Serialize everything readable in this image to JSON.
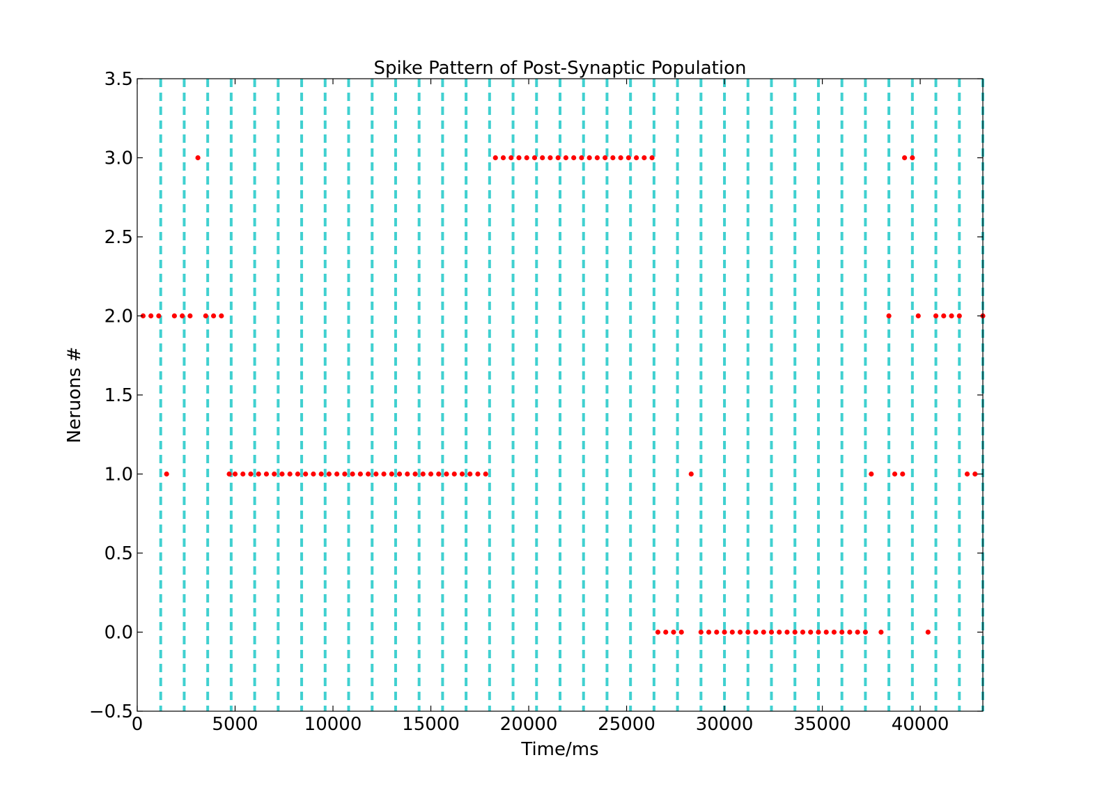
{
  "chart_data": {
    "type": "scatter",
    "title": "Spike Pattern of Post-Synaptic Population",
    "xlabel": "Time/ms",
    "ylabel": "Neruons #",
    "xlim": [
      0,
      43200
    ],
    "ylim": [
      -0.5,
      3.5
    ],
    "xticks": [
      0,
      5000,
      10000,
      15000,
      20000,
      25000,
      30000,
      35000,
      40000
    ],
    "xtick_labels": [
      "0",
      "5000",
      "10000",
      "15000",
      "20000",
      "25000",
      "30000",
      "35000",
      "40000"
    ],
    "yticks": [
      -0.5,
      0.0,
      0.5,
      1.0,
      1.5,
      2.0,
      2.5,
      3.0,
      3.5
    ],
    "ytick_labels": [
      "−0.5",
      "0.0",
      "0.5",
      "1.0",
      "1.5",
      "2.0",
      "2.5",
      "3.0",
      "3.5"
    ],
    "grid": false,
    "legend": "none",
    "marker_color": "#ff0000",
    "reference_line_color": "#40d0d0",
    "reference_lines_x": [
      1200,
      2400,
      3600,
      4800,
      6000,
      7200,
      8400,
      9600,
      10800,
      12000,
      13200,
      14400,
      15600,
      16800,
      18000,
      19200,
      20400,
      21600,
      22800,
      24000,
      25200,
      26400,
      27600,
      28800,
      30000,
      31200,
      32400,
      33600,
      34800,
      36000,
      37200,
      38400,
      39600,
      40800,
      42000,
      43200
    ],
    "series": [
      {
        "neuron": 0,
        "times": [
          26600,
          27000,
          27400,
          27800,
          28800,
          29200,
          29600,
          30000,
          30400,
          30800,
          31200,
          31600,
          32000,
          32400,
          32800,
          33200,
          33600,
          34000,
          34400,
          34800,
          35200,
          35600,
          36000,
          36400,
          36800,
          37200,
          38000,
          40400
        ]
      },
      {
        "neuron": 1,
        "times": [
          1500,
          4700,
          5000,
          5400,
          5800,
          6200,
          6600,
          7000,
          7400,
          7800,
          8200,
          8600,
          9000,
          9400,
          9800,
          10200,
          10600,
          11000,
          11400,
          11800,
          12200,
          12600,
          13000,
          13400,
          13800,
          14200,
          14600,
          15000,
          15400,
          15800,
          16200,
          16600,
          17000,
          17400,
          17800,
          28300,
          37500,
          38700,
          39100,
          42400,
          42800
        ]
      },
      {
        "neuron": 2,
        "times": [
          300,
          700,
          1100,
          1900,
          2300,
          2700,
          3500,
          3900,
          4300,
          38400,
          39900,
          40800,
          41200,
          41600,
          42000,
          43200
        ]
      },
      {
        "neuron": 3,
        "times": [
          3100,
          18300,
          18700,
          19100,
          19500,
          19900,
          20300,
          20700,
          21100,
          21500,
          21900,
          22300,
          22700,
          23100,
          23500,
          23900,
          24300,
          24700,
          25100,
          25500,
          25900,
          26300,
          39200,
          39600
        ]
      }
    ]
  }
}
